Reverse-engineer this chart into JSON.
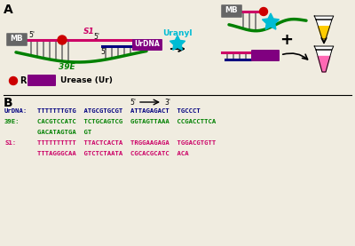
{
  "bg_color": "#f0ece0",
  "section_A_label": "A",
  "section_B_label": "B",
  "urdna_label": "UrDNA:",
  "urdna_seq_line1": "TTTTTTTGTG  ATGCGTGCGT  ATTAGAGACT  TGCCCT",
  "e39_label": "39E:",
  "e39_seq_line1": "CACGTCCATC  TCTGCAGTCG  GGTAGTTAAA  CCGACCTTCA",
  "e39_seq_line2": "GACATAGTGA  GT",
  "s1_label": "S1:",
  "s1_seq_line1": "TTTTTTTTTT  TTACTCACTA  TRGGAAGAGA  TGGACGTGTT",
  "s1_seq_line2": "TTTAGGGCAA  GTCTCTAATA  CGCACGCATC  ACA",
  "color_urdna": "#000080",
  "color_39e": "#008000",
  "color_s1": "#cc0066",
  "color_mb_box": "#666666",
  "color_pink_strand": "#cc0066",
  "color_green_strand": "#008000",
  "color_blue_strand": "#000080",
  "color_purple_box": "#800080",
  "color_red_circle": "#cc0000",
  "color_cyan_star": "#00bcd4",
  "color_uranyl_text": "#00bcd4",
  "color_yellow_tube": "#ffcc00",
  "color_pink_tube": "#ff69b4",
  "arrow_color": "#000000"
}
